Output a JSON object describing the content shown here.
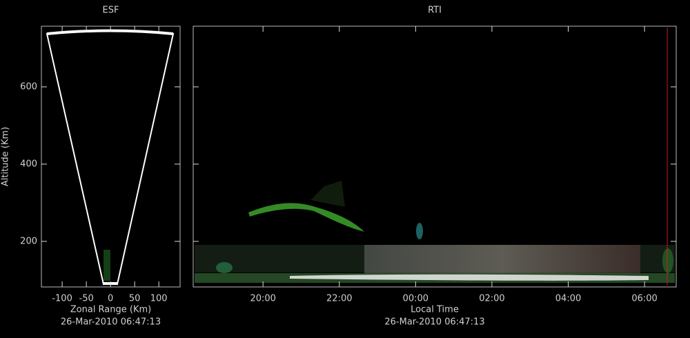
{
  "chart_data": [
    {
      "type": "radar-fan",
      "title": "ESF",
      "x_label": "Zonal Range (Km)",
      "y_label": "Altitude (Km)",
      "subtitle": "26-Mar-2010 06:47:13",
      "xlim": [
        -143,
        144
      ],
      "xticks": [
        -100,
        -50,
        0,
        50,
        100
      ],
      "ylim": [
        82,
        757
      ],
      "yticks": [
        200,
        400,
        600
      ]
    },
    {
      "type": "rti",
      "title": "RTI",
      "x_label": "Local Time",
      "subtitle": "26-Mar-2010 06:47:13",
      "xlim": [
        18.17,
        30.83
      ],
      "xticks": [
        {
          "value": 20,
          "label": "20:00"
        },
        {
          "value": 22,
          "label": "22:00"
        },
        {
          "value": 24,
          "label": "00:00"
        },
        {
          "value": 26,
          "label": "02:00"
        },
        {
          "value": 28,
          "label": "04:00"
        },
        {
          "value": 30,
          "label": "06:00"
        }
      ],
      "ylim": [
        82,
        757
      ],
      "yticks": [
        200,
        400,
        600
      ]
    }
  ]
}
